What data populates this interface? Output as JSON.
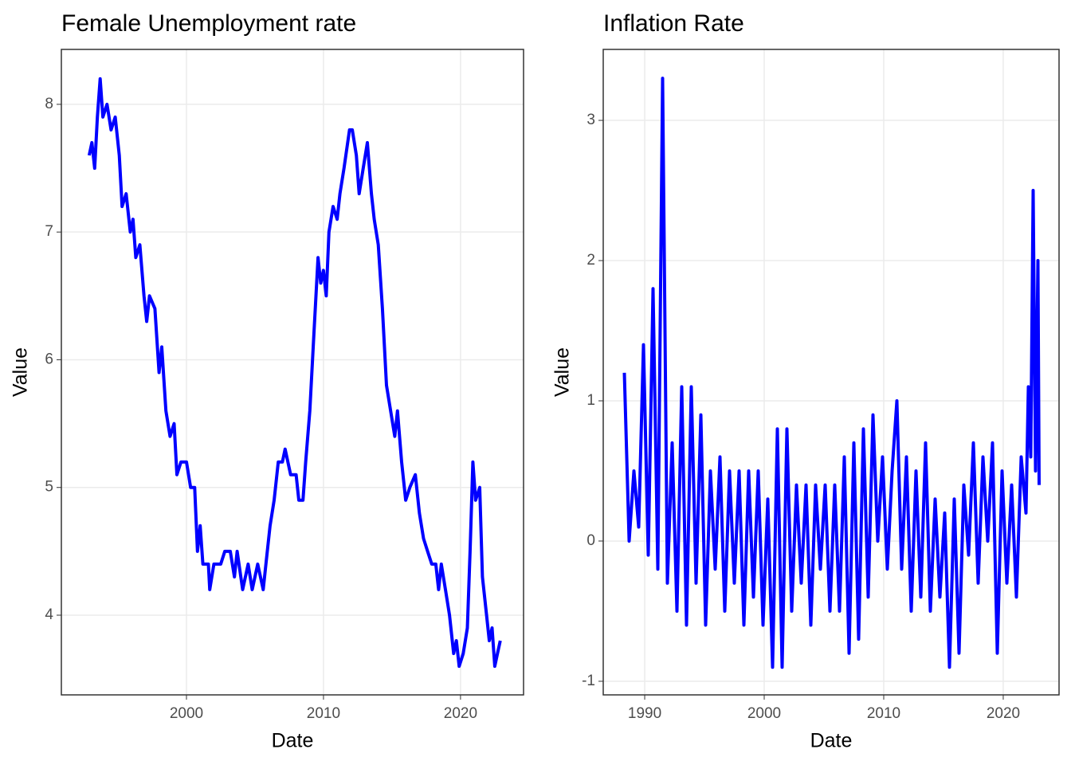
{
  "chart_data": [
    {
      "type": "line",
      "title": "Female Unemployment rate",
      "x_label": "Date",
      "y_label": "Value",
      "color": "#0000ff",
      "grid": true,
      "xlim": [
        1990.87,
        2024.6
      ],
      "xticks": [
        2000,
        2010,
        2020
      ],
      "ylim": [
        3.376,
        8.43
      ],
      "yticks": [
        4,
        5,
        6,
        7,
        8
      ],
      "x": [
        1992.9,
        1993.1,
        1993.3,
        1993.5,
        1993.7,
        1993.9,
        1994.2,
        1994.5,
        1994.8,
        1995.1,
        1995.3,
        1995.6,
        1995.9,
        1996.1,
        1996.3,
        1996.6,
        1996.9,
        1997.1,
        1997.3,
        1997.7,
        1998.0,
        1998.2,
        1998.5,
        1998.8,
        1999.1,
        1999.3,
        1999.6,
        2000.0,
        2000.3,
        2000.6,
        2000.8,
        2001.0,
        2001.2,
        2001.6,
        2001.7,
        2002.0,
        2002.5,
        2002.8,
        2003.2,
        2003.5,
        2003.7,
        2004.1,
        2004.5,
        2004.8,
        2005.2,
        2005.6,
        2005.8,
        2006.1,
        2006.4,
        2006.7,
        2007.0,
        2007.2,
        2007.6,
        2008.0,
        2008.2,
        2008.5,
        2008.7,
        2009.0,
        2009.3,
        2009.6,
        2009.8,
        2010.0,
        2010.2,
        2010.4,
        2010.7,
        2011.0,
        2011.2,
        2011.5,
        2011.9,
        2012.1,
        2012.4,
        2012.6,
        2012.9,
        2013.2,
        2013.5,
        2013.7,
        2014.0,
        2014.3,
        2014.6,
        2014.9,
        2015.2,
        2015.4,
        2015.7,
        2016.0,
        2016.3,
        2016.7,
        2017.0,
        2017.3,
        2017.6,
        2017.9,
        2018.2,
        2018.4,
        2018.6,
        2018.9,
        2019.2,
        2019.5,
        2019.7,
        2019.9,
        2020.2,
        2020.5,
        2020.7,
        2020.9,
        2021.1,
        2021.4,
        2021.6,
        2021.9,
        2022.1,
        2022.3,
        2022.5,
        2022.7,
        2022.9
      ],
      "values": [
        7.6,
        7.7,
        7.5,
        7.9,
        8.2,
        7.9,
        8.0,
        7.8,
        7.9,
        7.6,
        7.2,
        7.3,
        7.0,
        7.1,
        6.8,
        6.9,
        6.5,
        6.3,
        6.5,
        6.4,
        5.9,
        6.1,
        5.6,
        5.4,
        5.5,
        5.1,
        5.2,
        5.2,
        5.0,
        5.0,
        4.5,
        4.7,
        4.4,
        4.4,
        4.2,
        4.4,
        4.4,
        4.5,
        4.5,
        4.3,
        4.5,
        4.2,
        4.4,
        4.2,
        4.4,
        4.2,
        4.4,
        4.7,
        4.9,
        5.2,
        5.2,
        5.3,
        5.1,
        5.1,
        4.9,
        4.9,
        5.2,
        5.6,
        6.2,
        6.8,
        6.6,
        6.7,
        6.5,
        7.0,
        7.2,
        7.1,
        7.3,
        7.5,
        7.8,
        7.8,
        7.6,
        7.3,
        7.5,
        7.7,
        7.3,
        7.1,
        6.9,
        6.4,
        5.8,
        5.6,
        5.4,
        5.6,
        5.2,
        4.9,
        5.0,
        5.1,
        4.8,
        4.6,
        4.5,
        4.4,
        4.4,
        4.2,
        4.4,
        4.2,
        4.0,
        3.7,
        3.8,
        3.6,
        3.7,
        3.9,
        4.5,
        5.2,
        4.9,
        5.0,
        4.3,
        4.0,
        3.8,
        3.9,
        3.6,
        3.7,
        3.8
      ]
    },
    {
      "type": "line",
      "title": "Inflation Rate",
      "x_label": "Date",
      "y_label": "Value",
      "color": "#0000ff",
      "grid": true,
      "xlim": [
        1986.53,
        2024.67
      ],
      "xticks": [
        1990,
        2000,
        2010,
        2020
      ],
      "ylim": [
        -1.097,
        3.506
      ],
      "yticks": [
        -1,
        0,
        1,
        2,
        3
      ],
      "x": [
        1988.3,
        1988.7,
        1989.1,
        1989.5,
        1989.9,
        1990.3,
        1990.7,
        1991.1,
        1991.5,
        1991.9,
        1992.3,
        1992.7,
        1993.1,
        1993.5,
        1993.9,
        1994.3,
        1994.7,
        1995.1,
        1995.5,
        1995.9,
        1996.3,
        1996.7,
        1997.1,
        1997.5,
        1997.9,
        1998.3,
        1998.7,
        1999.1,
        1999.5,
        1999.9,
        2000.3,
        2000.7,
        2001.1,
        2001.5,
        2001.9,
        2002.3,
        2002.7,
        2003.1,
        2003.5,
        2003.9,
        2004.3,
        2004.7,
        2005.1,
        2005.5,
        2005.9,
        2006.3,
        2006.7,
        2007.1,
        2007.5,
        2007.9,
        2008.3,
        2008.7,
        2009.1,
        2009.5,
        2009.9,
        2010.3,
        2010.7,
        2011.1,
        2011.5,
        2011.9,
        2012.3,
        2012.7,
        2013.1,
        2013.5,
        2013.9,
        2014.3,
        2014.7,
        2015.1,
        2015.5,
        2015.9,
        2016.3,
        2016.7,
        2017.1,
        2017.5,
        2017.9,
        2018.3,
        2018.7,
        2019.1,
        2019.5,
        2019.9,
        2020.3,
        2020.7,
        2021.1,
        2021.5,
        2021.9,
        2022.1,
        2022.3,
        2022.5,
        2022.7,
        2022.9,
        2023.0
      ],
      "values": [
        1.2,
        0.0,
        0.5,
        0.1,
        1.4,
        -0.1,
        1.8,
        -0.2,
        3.3,
        -0.3,
        0.7,
        -0.5,
        1.1,
        -0.6,
        1.1,
        -0.3,
        0.9,
        -0.6,
        0.5,
        -0.2,
        0.6,
        -0.5,
        0.5,
        -0.3,
        0.5,
        -0.6,
        0.5,
        -0.4,
        0.5,
        -0.6,
        0.3,
        -0.9,
        0.8,
        -0.9,
        0.8,
        -0.5,
        0.4,
        -0.3,
        0.4,
        -0.6,
        0.4,
        -0.2,
        0.4,
        -0.5,
        0.4,
        -0.5,
        0.6,
        -0.8,
        0.7,
        -0.7,
        0.8,
        -0.4,
        0.9,
        0.0,
        0.6,
        -0.2,
        0.5,
        1.0,
        -0.2,
        0.6,
        -0.5,
        0.5,
        -0.4,
        0.7,
        -0.5,
        0.3,
        -0.4,
        0.2,
        -0.9,
        0.3,
        -0.8,
        0.4,
        -0.1,
        0.7,
        -0.3,
        0.6,
        0.0,
        0.7,
        -0.8,
        0.5,
        -0.3,
        0.4,
        -0.4,
        0.6,
        0.2,
        1.1,
        0.6,
        2.5,
        0.5,
        2.0,
        0.4
      ]
    }
  ]
}
